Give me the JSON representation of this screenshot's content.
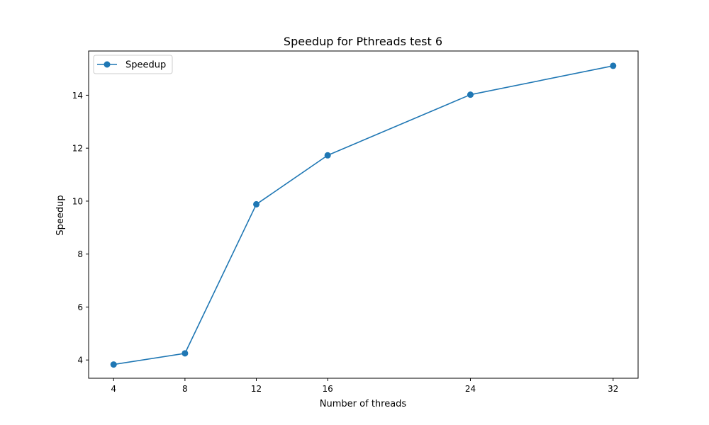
{
  "chart_data": {
    "type": "line",
    "title": "Speedup for Pthreads test 6",
    "xlabel": "Number of threads",
    "ylabel": "Speedup",
    "x": [
      4,
      8,
      12,
      16,
      24,
      32
    ],
    "xticks": [
      4,
      8,
      12,
      16,
      24,
      32
    ],
    "yticks": [
      4,
      6,
      8,
      10,
      12,
      14
    ],
    "xlim": [
      2.6,
      33.4
    ],
    "ylim": [
      3.31,
      15.67
    ],
    "grid": false,
    "legend_position": "upper-left",
    "series": [
      {
        "name": "Speedup",
        "color": "#1f77b4",
        "marker": "circle",
        "values": [
          3.83,
          4.25,
          9.88,
          11.73,
          14.02,
          15.11
        ]
      }
    ]
  }
}
